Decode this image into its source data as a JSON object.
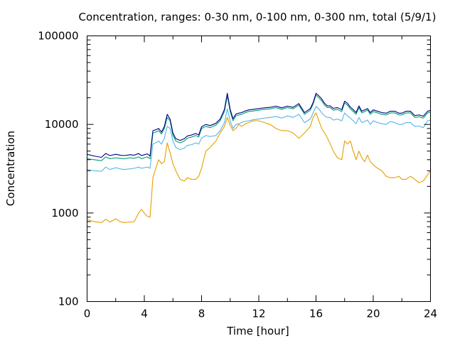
{
  "chart_data": {
    "type": "line",
    "title": "Concentration, ranges: 0-30 nm, 0-100 nm, 0-300 nm, total (5/9/1)",
    "xlabel": "Time [hour]",
    "ylabel": "Concentration",
    "xlim": [
      0,
      24
    ],
    "ylim": [
      100,
      100000
    ],
    "yscale": "log",
    "grid": false,
    "x_ticks": [
      0,
      4,
      8,
      12,
      16,
      20,
      24
    ],
    "x_tick_labels": [
      "0",
      "4",
      "8",
      "12",
      "16",
      "20",
      "24"
    ],
    "y_ticks": [
      100,
      1000,
      10000,
      100000
    ],
    "y_tick_labels": [
      "100",
      "1000",
      "10000",
      "100000"
    ],
    "series": [
      {
        "color": "#e69f00",
        "x": [
          0,
          0.5,
          1,
          1.3,
          1.6,
          2,
          2.3,
          2.6,
          3,
          3.3,
          3.6,
          3.8,
          4,
          4.2,
          4.4,
          4.6,
          4.8,
          5,
          5.2,
          5.4,
          5.6,
          5.8,
          6,
          6.2,
          6.5,
          6.8,
          7,
          7.3,
          7.6,
          7.8,
          8,
          8.3,
          8.6,
          9,
          9.3,
          9.6,
          9.8,
          10,
          10.2,
          10.4,
          10.6,
          10.8,
          11,
          11.3,
          11.6,
          12,
          12.4,
          12.8,
          13.2,
          13.6,
          14,
          14.4,
          14.8,
          15.2,
          15.6,
          15.8,
          16,
          16.2,
          16.4,
          16.6,
          16.8,
          17,
          17.2,
          17.5,
          17.8,
          18,
          18.2,
          18.4,
          18.6,
          18.8,
          19,
          19.2,
          19.4,
          19.6,
          19.8,
          20,
          20.3,
          20.6,
          20.9,
          21.2,
          21.5,
          21.8,
          22,
          22.3,
          22.6,
          22.9,
          23.2,
          23.5,
          23.8,
          24
        ],
        "values": [
          840,
          800,
          780,
          850,
          790,
          860,
          800,
          780,
          790,
          800,
          1000,
          1100,
          1000,
          920,
          900,
          2500,
          3200,
          4000,
          3600,
          3800,
          6200,
          4800,
          3600,
          3000,
          2400,
          2300,
          2500,
          2400,
          2400,
          2600,
          3200,
          5000,
          5500,
          6500,
          8000,
          9500,
          12000,
          9800,
          8500,
          9000,
          10000,
          9500,
          10000,
          10500,
          11000,
          11000,
          10500,
          10000,
          9000,
          8500,
          8500,
          8000,
          7000,
          8000,
          9500,
          12000,
          13500,
          11000,
          9000,
          8000,
          7000,
          6000,
          5000,
          4200,
          4000,
          6500,
          6000,
          6500,
          5000,
          4000,
          5000,
          4200,
          3800,
          4500,
          3800,
          3500,
          3200,
          3000,
          2600,
          2500,
          2500,
          2600,
          2400,
          2400,
          2600,
          2400,
          2200,
          2300,
          2700,
          3000
        ]
      },
      {
        "color": "#56b4e9",
        "x": [
          0,
          0.5,
          1,
          1.3,
          1.6,
          2,
          2.3,
          2.6,
          3,
          3.3,
          3.6,
          3.8,
          4,
          4.2,
          4.4,
          4.6,
          4.8,
          5,
          5.2,
          5.4,
          5.6,
          5.8,
          6,
          6.2,
          6.5,
          6.8,
          7,
          7.3,
          7.6,
          7.8,
          8,
          8.3,
          8.6,
          9,
          9.3,
          9.6,
          9.8,
          10,
          10.2,
          10.4,
          10.6,
          10.8,
          11,
          11.3,
          11.6,
          12,
          12.4,
          12.8,
          13.2,
          13.6,
          14,
          14.4,
          14.8,
          15.2,
          15.6,
          15.8,
          16,
          16.2,
          16.4,
          16.6,
          16.8,
          17,
          17.2,
          17.5,
          17.8,
          18,
          18.2,
          18.4,
          18.6,
          18.8,
          19,
          19.2,
          19.4,
          19.6,
          19.8,
          20,
          20.3,
          20.6,
          20.9,
          21.2,
          21.5,
          21.8,
          22,
          22.3,
          22.6,
          22.9,
          23.2,
          23.5,
          23.8,
          24
        ],
        "values": [
          3100,
          3000,
          2950,
          3300,
          3100,
          3250,
          3150,
          3100,
          3150,
          3200,
          3300,
          3200,
          3250,
          3300,
          3200,
          6000,
          6200,
          6500,
          6000,
          7000,
          9500,
          9000,
          6500,
          5500,
          5200,
          5400,
          5800,
          5900,
          6200,
          6000,
          7000,
          7500,
          7300,
          7500,
          8500,
          10500,
          15000,
          11000,
          9000,
          10000,
          10200,
          10500,
          10800,
          11000,
          11300,
          11500,
          11800,
          12000,
          12300,
          11800,
          12500,
          12000,
          13000,
          10500,
          11500,
          13500,
          16000,
          15000,
          13500,
          12500,
          12000,
          12000,
          11200,
          11500,
          11000,
          13500,
          12500,
          11800,
          11000,
          10200,
          12000,
          10500,
          10800,
          11200,
          10000,
          11000,
          10500,
          10200,
          10000,
          10800,
          10500,
          10000,
          10000,
          10500,
          10500,
          9500,
          9600,
          9200,
          11000,
          11200
        ]
      },
      {
        "color": "#009e73",
        "x": [
          0,
          0.5,
          1,
          1.3,
          1.6,
          2,
          2.3,
          2.6,
          3,
          3.3,
          3.6,
          3.8,
          4,
          4.2,
          4.4,
          4.6,
          4.8,
          5,
          5.2,
          5.4,
          5.6,
          5.8,
          6,
          6.2,
          6.5,
          6.8,
          7,
          7.3,
          7.6,
          7.8,
          8,
          8.3,
          8.6,
          9,
          9.3,
          9.6,
          9.8,
          10,
          10.2,
          10.4,
          10.6,
          10.8,
          11,
          11.3,
          11.6,
          12,
          12.4,
          12.8,
          13.2,
          13.6,
          14,
          14.4,
          14.8,
          15.2,
          15.6,
          15.8,
          16,
          16.2,
          16.4,
          16.6,
          16.8,
          17,
          17.2,
          17.5,
          17.8,
          18,
          18.2,
          18.4,
          18.6,
          18.8,
          19,
          19.2,
          19.4,
          19.6,
          19.8,
          20,
          20.3,
          20.6,
          20.9,
          21.2,
          21.5,
          21.8,
          22,
          22.3,
          22.6,
          22.9,
          23.2,
          23.5,
          23.8,
          24
        ],
        "values": [
          4100,
          4000,
          3900,
          4300,
          4100,
          4200,
          4150,
          4100,
          4200,
          4150,
          4300,
          4100,
          4200,
          4300,
          4100,
          8000,
          8200,
          8500,
          7800,
          9000,
          12000,
          11000,
          7500,
          6500,
          6200,
          6500,
          7000,
          7200,
          7500,
          7200,
          9000,
          9500,
          9200,
          9800,
          11000,
          14000,
          21000,
          14000,
          11000,
          12500,
          12800,
          13000,
          13500,
          14000,
          14200,
          14500,
          14800,
          15000,
          15500,
          14800,
          15500,
          15000,
          16500,
          13000,
          14500,
          17000,
          21500,
          20000,
          18500,
          16500,
          15500,
          15500,
          14500,
          14800,
          14000,
          17500,
          16500,
          15000,
          14000,
          13000,
          15500,
          13500,
          14000,
          14500,
          13000,
          14000,
          13500,
          13000,
          12800,
          13500,
          13500,
          12800,
          12800,
          13500,
          13500,
          12000,
          12200,
          11800,
          13500,
          13800
        ]
      },
      {
        "color": "#000080",
        "x": [
          0,
          0.5,
          1,
          1.3,
          1.6,
          2,
          2.3,
          2.6,
          3,
          3.3,
          3.6,
          3.8,
          4,
          4.2,
          4.4,
          4.6,
          4.8,
          5,
          5.2,
          5.4,
          5.6,
          5.8,
          6,
          6.2,
          6.5,
          6.8,
          7,
          7.3,
          7.6,
          7.8,
          8,
          8.3,
          8.6,
          9,
          9.3,
          9.6,
          9.8,
          10,
          10.2,
          10.4,
          10.6,
          10.8,
          11,
          11.3,
          11.6,
          12,
          12.4,
          12.8,
          13.2,
          13.6,
          14,
          14.4,
          14.8,
          15.2,
          15.6,
          15.8,
          16,
          16.2,
          16.4,
          16.6,
          16.8,
          17,
          17.2,
          17.5,
          17.8,
          18,
          18.2,
          18.4,
          18.6,
          18.8,
          19,
          19.2,
          19.4,
          19.6,
          19.8,
          20,
          20.3,
          20.6,
          20.9,
          21.2,
          21.5,
          21.8,
          22,
          22.3,
          22.6,
          22.9,
          23.2,
          23.5,
          23.8,
          24
        ],
        "values": [
          4600,
          4400,
          4250,
          4700,
          4450,
          4600,
          4500,
          4450,
          4550,
          4500,
          4700,
          4450,
          4550,
          4650,
          4400,
          8500,
          8700,
          9000,
          8200,
          9500,
          13000,
          11500,
          8000,
          6900,
          6600,
          6900,
          7400,
          7600,
          7900,
          7600,
          9400,
          10000,
          9700,
          10300,
          11500,
          14800,
          22500,
          14800,
          11600,
          13100,
          13400,
          13600,
          14100,
          14600,
          14800,
          15100,
          15400,
          15600,
          16100,
          15400,
          16100,
          15600,
          17200,
          13600,
          15100,
          17700,
          22500,
          21000,
          19400,
          17300,
          16200,
          16200,
          15200,
          15500,
          14700,
          18300,
          17300,
          15700,
          14700,
          13600,
          16200,
          14100,
          14600,
          15100,
          13600,
          14600,
          14100,
          13600,
          13400,
          14100,
          14100,
          13400,
          13400,
          14100,
          14100,
          12600,
          12800,
          12400,
          14100,
          14400
        ]
      }
    ]
  }
}
